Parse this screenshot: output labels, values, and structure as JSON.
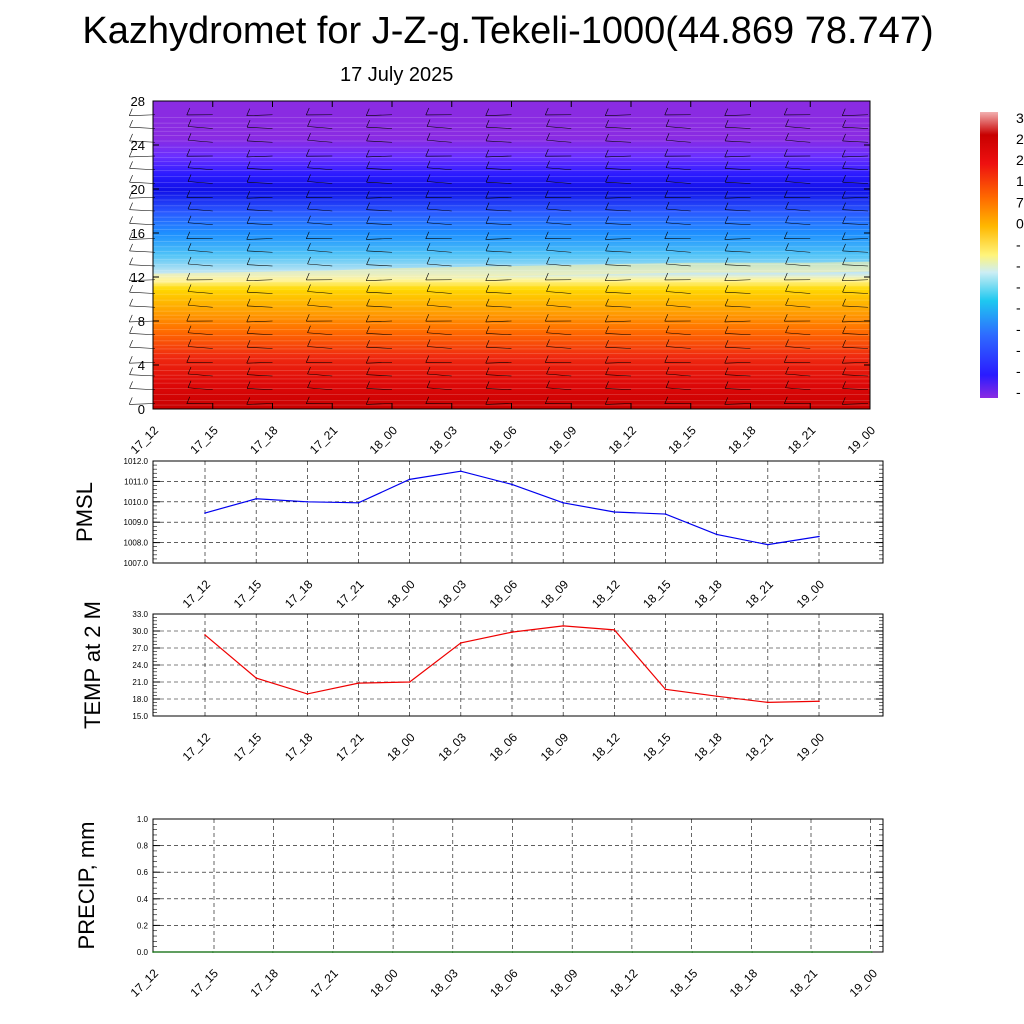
{
  "header": {
    "title": "Kazhydromet for J-Z-g.Tekeli-1000(44.869 78.747)",
    "subtitle": "17 July 2025"
  },
  "colors": {
    "pmsl_line": "#0000ee",
    "temp_line": "#ee0000",
    "precip_line": "#006400",
    "grid": "#000000"
  },
  "colorbar": {
    "labels": [
      "3",
      "2",
      "2",
      "1",
      "7",
      "0",
      "-",
      "-",
      "-",
      "-",
      "-",
      "-",
      "-",
      "-"
    ]
  },
  "chart_data": [
    {
      "name": "cross-section",
      "type": "heatmap",
      "categories": [
        "17_12",
        "17_15",
        "17_18",
        "17_21",
        "18_00",
        "18_03",
        "18_06",
        "18_09",
        "18_12",
        "18_15",
        "18_18",
        "18_21",
        "19_00"
      ],
      "ylim": [
        0,
        28
      ],
      "yticks": [
        "0",
        "4",
        "8",
        "12",
        "16",
        "20",
        "24",
        "28"
      ],
      "freezing_level": [
        12.0,
        12.1,
        12.2,
        12.3,
        12.5,
        12.6,
        12.7,
        12.8,
        12.9,
        13.0,
        13.0,
        13.0,
        13.1
      ]
    },
    {
      "name": "pmsl",
      "type": "line",
      "ylabel": "PMSL",
      "categories": [
        "17_12",
        "17_15",
        "17_18",
        "17_21",
        "18_00",
        "18_03",
        "18_06",
        "18_09",
        "18_12",
        "18_15",
        "18_18",
        "18_21",
        "19_00"
      ],
      "values": [
        1009.45,
        1010.15,
        1010.0,
        1009.95,
        1011.1,
        1011.5,
        1010.85,
        1009.95,
        1009.5,
        1009.4,
        1008.4,
        1007.9,
        1008.3
      ],
      "ylim": [
        1007.0,
        1012.0
      ],
      "yticks": [
        "1007.0",
        "1008.0",
        "1009.0",
        "1010.0",
        "1011.0",
        "1012.0"
      ]
    },
    {
      "name": "temp",
      "type": "line",
      "ylabel": "TEMP at 2 M",
      "categories": [
        "17_12",
        "17_15",
        "17_18",
        "17_21",
        "18_00",
        "18_03",
        "18_06",
        "18_09",
        "18_12",
        "18_15",
        "18_18",
        "18_21",
        "19_00"
      ],
      "values": [
        29.3,
        21.7,
        18.9,
        20.8,
        21.0,
        27.9,
        29.8,
        30.9,
        30.2,
        19.7,
        18.5,
        17.4,
        17.6
      ],
      "ylim": [
        15.0,
        33.0
      ],
      "yticks": [
        "15.0",
        "18.0",
        "21.0",
        "24.0",
        "27.0",
        "30.0",
        "33.0"
      ]
    },
    {
      "name": "precip",
      "type": "line",
      "ylabel": "PRECIP, mm",
      "categories": [
        "17_12",
        "17_15",
        "17_18",
        "17_21",
        "18_00",
        "18_03",
        "18_06",
        "18_09",
        "18_12",
        "18_15",
        "18_18",
        "18_21",
        "19_00"
      ],
      "values": [
        0,
        0,
        0,
        0,
        0,
        0,
        0,
        0,
        0,
        0,
        0,
        0,
        0
      ],
      "ylim": [
        0.0,
        1.0
      ],
      "yticks": [
        "0.0",
        "0.2",
        "0.4",
        "0.6",
        "0.8",
        "1.0"
      ]
    }
  ]
}
